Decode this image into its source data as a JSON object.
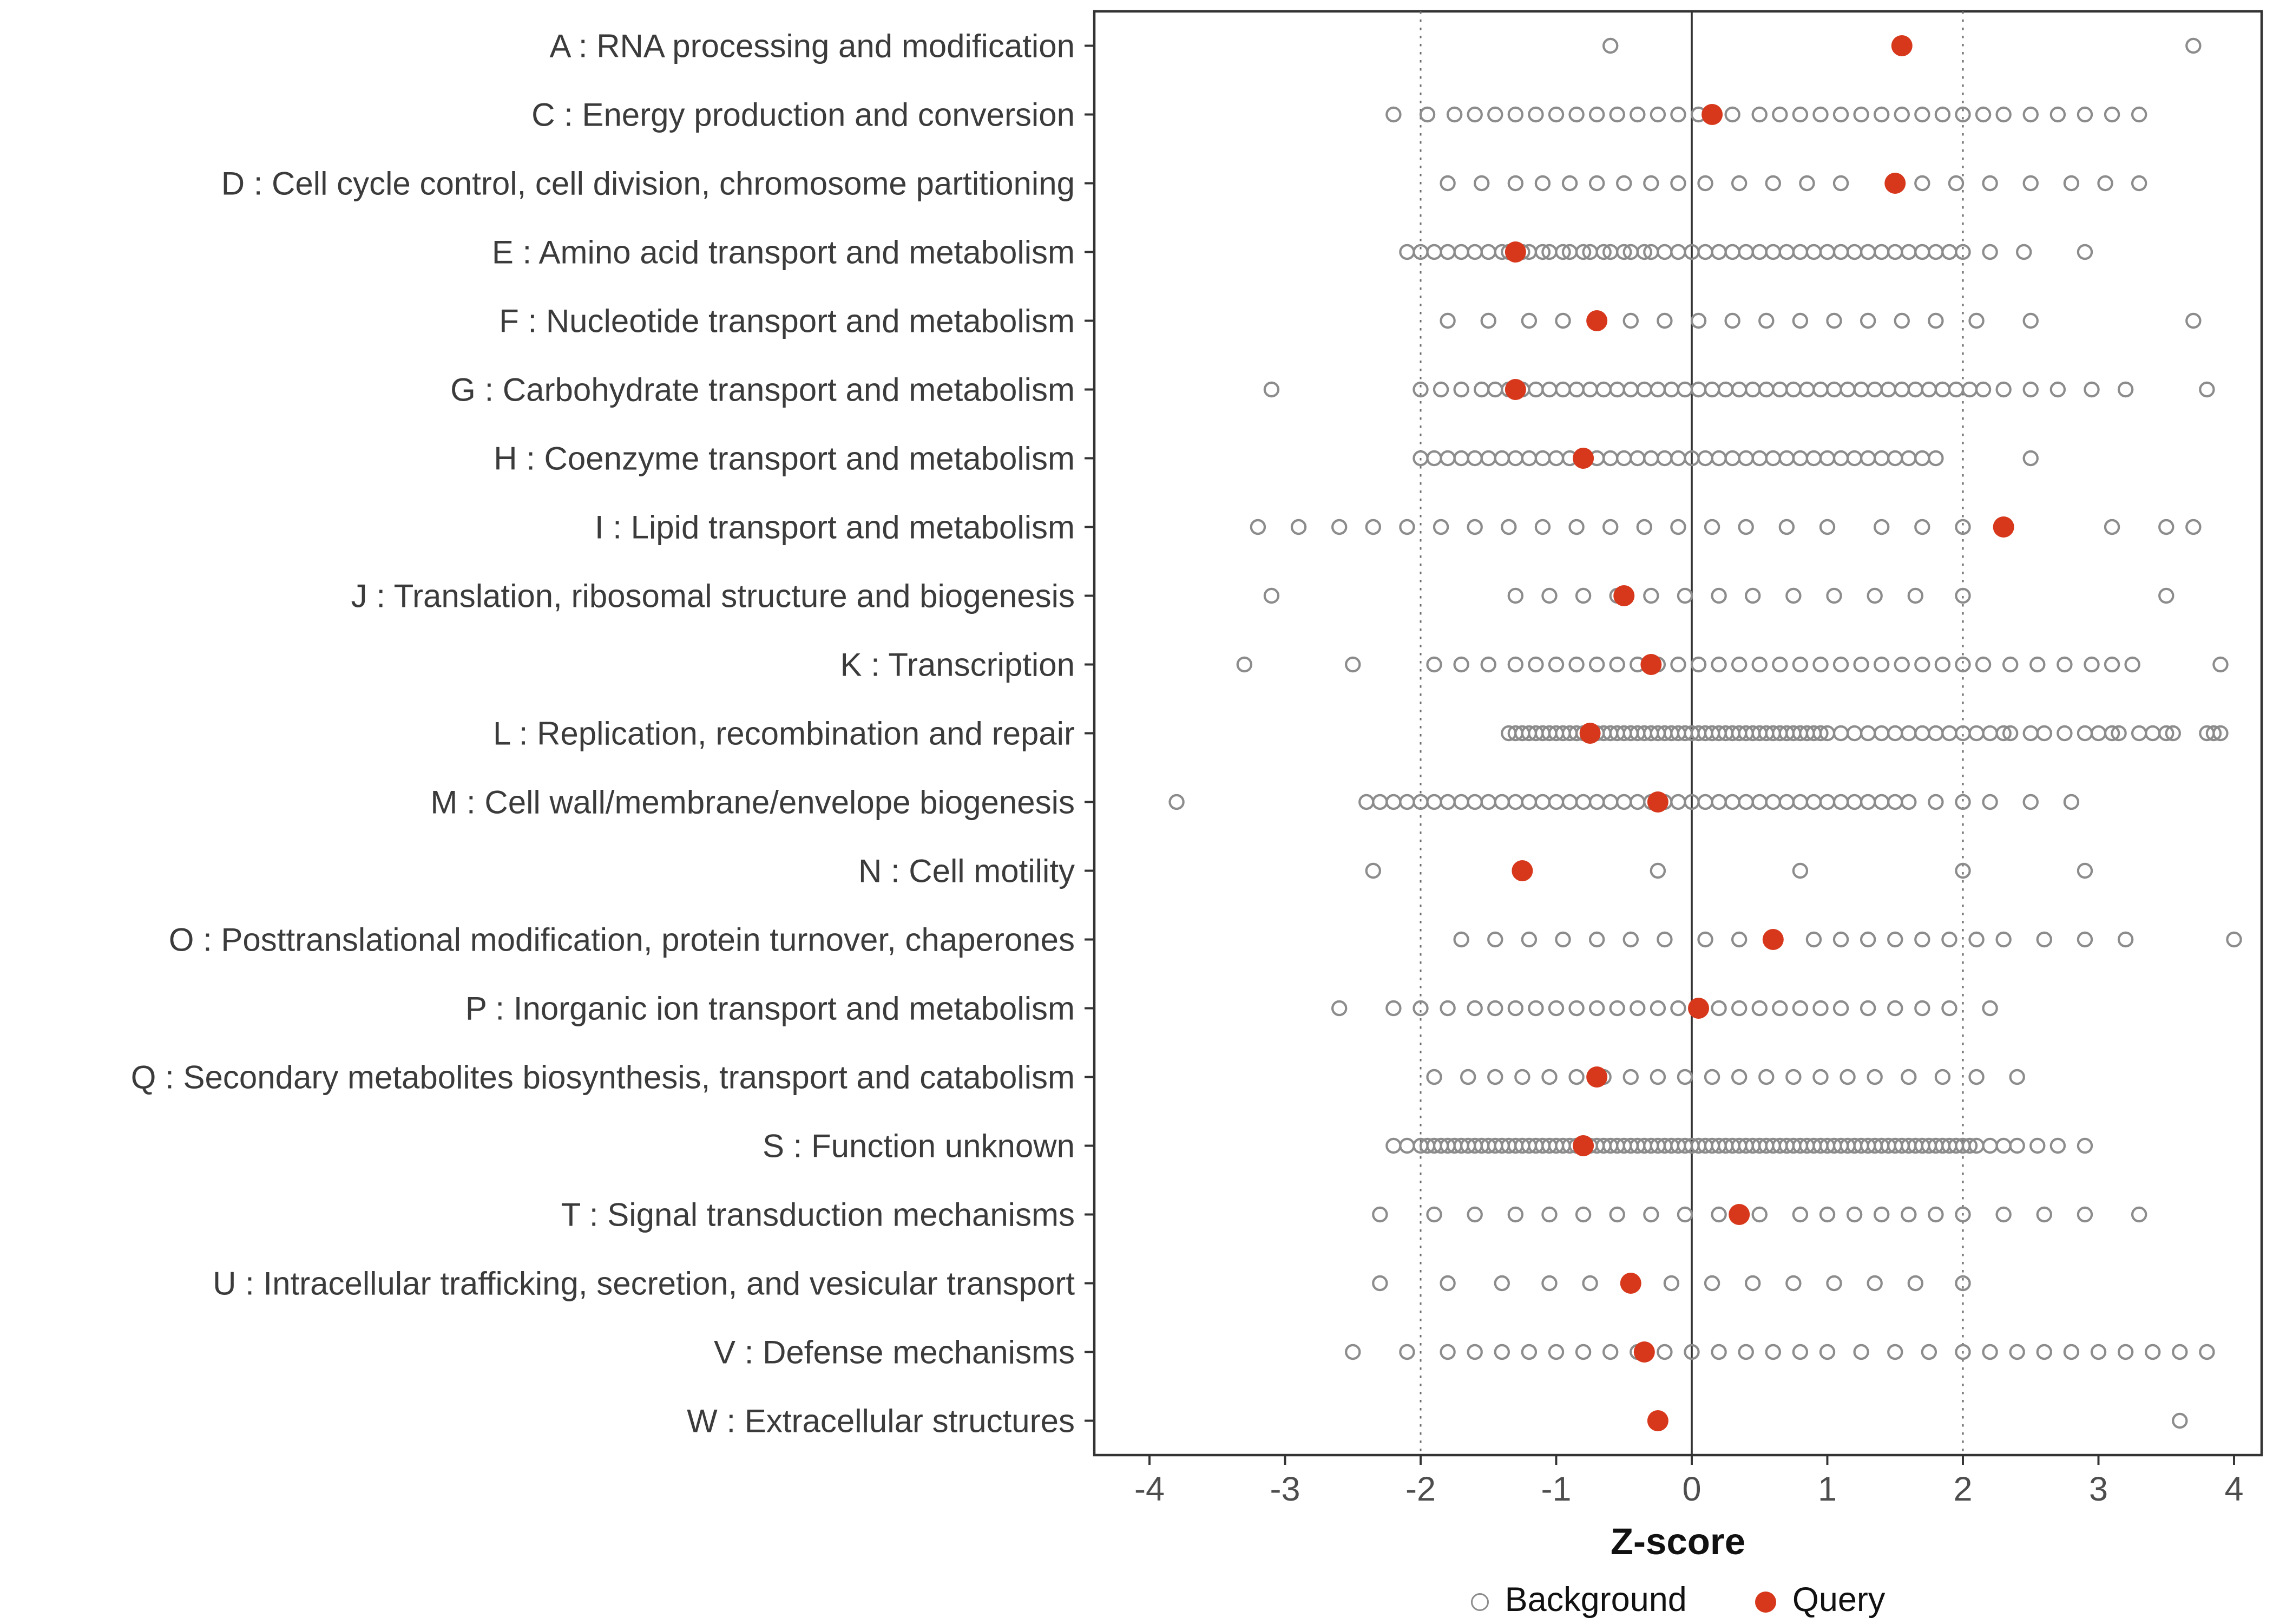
{
  "chart_data": {
    "type": "scatter",
    "title": "",
    "xlabel": "Z-score",
    "xlim": [
      -4.4,
      4.2
    ],
    "x_ticks": [
      -4,
      -3,
      -2,
      -1,
      0,
      1,
      2,
      3,
      4
    ],
    "reference_lines": {
      "solid": [
        0
      ],
      "dotted": [
        -2,
        2
      ]
    },
    "legend": {
      "background": "Background",
      "query": "Query"
    },
    "colors": {
      "query": "#D7381C",
      "background_stroke": "#8C8C8C",
      "panel_border": "#333333",
      "axis_text": "#4D4D4D",
      "label_text": "#3B3B3B"
    },
    "categories": [
      {
        "label": "A : RNA processing and modification",
        "query": 1.55,
        "background": [
          -0.6,
          3.7
        ]
      },
      {
        "label": "C : Energy production and conversion",
        "query": 0.15,
        "background": [
          -2.2,
          -1.95,
          -1.75,
          -1.6,
          -1.45,
          -1.3,
          -1.15,
          -1.0,
          -0.85,
          -0.7,
          -0.55,
          -0.4,
          -0.25,
          -0.1,
          0.05,
          0.3,
          0.5,
          0.65,
          0.8,
          0.95,
          1.1,
          1.25,
          1.4,
          1.55,
          1.7,
          1.85,
          2.0,
          2.15,
          2.3,
          2.5,
          2.7,
          2.9,
          3.1,
          3.3
        ]
      },
      {
        "label": "D : Cell cycle control, cell division, chromosome partitioning",
        "query": 1.5,
        "background": [
          -1.8,
          -1.55,
          -1.3,
          -1.1,
          -0.9,
          -0.7,
          -0.5,
          -0.3,
          -0.1,
          0.1,
          0.35,
          0.6,
          0.85,
          1.1,
          1.7,
          1.95,
          2.2,
          2.5,
          2.8,
          3.05,
          3.3
        ]
      },
      {
        "label": "E : Amino acid transport and metabolism",
        "query": -1.3,
        "background": [
          -2.1,
          -2.0,
          -1.9,
          -1.8,
          -1.7,
          -1.6,
          -1.5,
          -1.4,
          -1.35,
          -1.25,
          -1.2,
          -1.1,
          -1.05,
          -0.95,
          -0.9,
          -0.8,
          -0.75,
          -0.65,
          -0.6,
          -0.5,
          -0.45,
          -0.35,
          -0.3,
          -0.2,
          -0.1,
          0.0,
          0.1,
          0.2,
          0.3,
          0.4,
          0.5,
          0.6,
          0.7,
          0.8,
          0.9,
          1.0,
          1.1,
          1.2,
          1.3,
          1.4,
          1.5,
          1.6,
          1.7,
          1.8,
          1.9,
          2.0,
          2.2,
          2.45,
          2.9
        ]
      },
      {
        "label": "F : Nucleotide transport and metabolism",
        "query": -0.7,
        "background": [
          -1.8,
          -1.5,
          -1.2,
          -0.95,
          -0.7,
          -0.45,
          -0.2,
          0.05,
          0.3,
          0.55,
          0.8,
          1.05,
          1.3,
          1.55,
          1.8,
          2.1,
          2.5,
          3.7
        ]
      },
      {
        "label": "G : Carbohydrate transport and metabolism",
        "query": -1.3,
        "background": [
          -3.1,
          -2.0,
          -1.85,
          -1.7,
          -1.55,
          -1.45,
          -1.35,
          -1.25,
          -1.15,
          -1.05,
          -0.95,
          -0.85,
          -0.75,
          -0.65,
          -0.55,
          -0.45,
          -0.35,
          -0.25,
          -0.15,
          -0.05,
          0.05,
          0.15,
          0.25,
          0.35,
          0.45,
          0.55,
          0.65,
          0.75,
          0.85,
          0.95,
          1.05,
          1.15,
          1.25,
          1.35,
          1.45,
          1.55,
          1.65,
          1.75,
          1.85,
          1.95,
          2.05,
          2.15,
          2.3,
          2.5,
          2.7,
          2.95,
          3.2,
          3.8
        ]
      },
      {
        "label": "H : Coenzyme transport and metabolism",
        "query": -0.8,
        "background": [
          -2.0,
          -1.9,
          -1.8,
          -1.7,
          -1.6,
          -1.5,
          -1.4,
          -1.3,
          -1.2,
          -1.1,
          -1.0,
          -0.9,
          -0.8,
          -0.7,
          -0.6,
          -0.5,
          -0.4,
          -0.3,
          -0.2,
          -0.1,
          0.0,
          0.1,
          0.2,
          0.3,
          0.4,
          0.5,
          0.6,
          0.7,
          0.8,
          0.9,
          1.0,
          1.1,
          1.2,
          1.3,
          1.4,
          1.5,
          1.6,
          1.7,
          1.8,
          2.5
        ]
      },
      {
        "label": "I : Lipid transport and metabolism",
        "query": 2.3,
        "background": [
          -3.2,
          -2.9,
          -2.6,
          -2.35,
          -2.1,
          -1.85,
          -1.6,
          -1.35,
          -1.1,
          -0.85,
          -0.6,
          -0.35,
          -0.1,
          0.15,
          0.4,
          0.7,
          1.0,
          1.4,
          1.7,
          2.0,
          3.1,
          3.5,
          3.7
        ]
      },
      {
        "label": "J : Translation, ribosomal structure and biogenesis",
        "query": -0.5,
        "background": [
          -3.1,
          -1.3,
          -1.05,
          -0.8,
          -0.55,
          -0.3,
          -0.05,
          0.2,
          0.45,
          0.75,
          1.05,
          1.35,
          1.65,
          2.0,
          3.5
        ]
      },
      {
        "label": "K : Transcription",
        "query": -0.3,
        "background": [
          -3.3,
          -2.5,
          -1.9,
          -1.7,
          -1.5,
          -1.3,
          -1.15,
          -1.0,
          -0.85,
          -0.7,
          -0.55,
          -0.4,
          -0.25,
          -0.1,
          0.05,
          0.2,
          0.35,
          0.5,
          0.65,
          0.8,
          0.95,
          1.1,
          1.25,
          1.4,
          1.55,
          1.7,
          1.85,
          2.0,
          2.15,
          2.35,
          2.55,
          2.75,
          2.95,
          3.1,
          3.25,
          3.9
        ]
      },
      {
        "label": "L : Replication, recombination and repair",
        "query": -0.75,
        "background": [
          -1.35,
          -1.3,
          -1.25,
          -1.2,
          -1.15,
          -1.1,
          -1.05,
          -1.0,
          -0.95,
          -0.9,
          -0.85,
          -0.8,
          -0.75,
          -0.7,
          -0.65,
          -0.6,
          -0.55,
          -0.5,
          -0.45,
          -0.4,
          -0.35,
          -0.3,
          -0.25,
          -0.2,
          -0.15,
          -0.1,
          -0.05,
          0.0,
          0.05,
          0.1,
          0.15,
          0.2,
          0.25,
          0.3,
          0.35,
          0.4,
          0.45,
          0.5,
          0.55,
          0.6,
          0.65,
          0.7,
          0.75,
          0.8,
          0.85,
          0.9,
          0.95,
          1.0,
          1.1,
          1.2,
          1.3,
          1.4,
          1.5,
          1.6,
          1.7,
          1.8,
          1.9,
          2.0,
          2.1,
          2.2,
          2.3,
          2.35,
          2.5,
          2.6,
          2.75,
          2.9,
          3.0,
          3.1,
          3.15,
          3.3,
          3.4,
          3.5,
          3.55,
          3.8,
          3.85,
          3.9
        ]
      },
      {
        "label": "M : Cell wall/membrane/envelope biogenesis",
        "query": -0.25,
        "background": [
          -3.8,
          -2.4,
          -2.3,
          -2.2,
          -2.1,
          -2.0,
          -1.9,
          -1.8,
          -1.7,
          -1.6,
          -1.5,
          -1.4,
          -1.3,
          -1.2,
          -1.1,
          -1.0,
          -0.9,
          -0.8,
          -0.7,
          -0.6,
          -0.5,
          -0.4,
          -0.3,
          -0.2,
          -0.1,
          0.0,
          0.1,
          0.2,
          0.3,
          0.4,
          0.5,
          0.6,
          0.7,
          0.8,
          0.9,
          1.0,
          1.1,
          1.2,
          1.3,
          1.4,
          1.5,
          1.6,
          1.8,
          2.0,
          2.2,
          2.5,
          2.8
        ]
      },
      {
        "label": "N : Cell motility",
        "query": -1.25,
        "background": [
          -2.35,
          -0.25,
          0.8,
          2.0,
          2.9
        ]
      },
      {
        "label": "O : Posttranslational modification, protein turnover, chaperones",
        "query": 0.6,
        "background": [
          -1.7,
          -1.45,
          -1.2,
          -0.95,
          -0.7,
          -0.45,
          -0.2,
          0.1,
          0.35,
          0.9,
          1.1,
          1.3,
          1.5,
          1.7,
          1.9,
          2.1,
          2.3,
          2.6,
          2.9,
          3.2,
          4.0
        ]
      },
      {
        "label": "P : Inorganic ion transport and metabolism",
        "query": 0.05,
        "background": [
          -2.6,
          -2.2,
          -2.0,
          -1.8,
          -1.6,
          -1.45,
          -1.3,
          -1.15,
          -1.0,
          -0.85,
          -0.7,
          -0.55,
          -0.4,
          -0.25,
          -0.1,
          0.05,
          0.2,
          0.35,
          0.5,
          0.65,
          0.8,
          0.95,
          1.1,
          1.3,
          1.5,
          1.7,
          1.9,
          2.2
        ]
      },
      {
        "label": "Q : Secondary metabolites biosynthesis, transport and catabolism",
        "query": -0.7,
        "background": [
          -1.9,
          -1.65,
          -1.45,
          -1.25,
          -1.05,
          -0.85,
          -0.65,
          -0.45,
          -0.25,
          -0.05,
          0.15,
          0.35,
          0.55,
          0.75,
          0.95,
          1.15,
          1.35,
          1.6,
          1.85,
          2.1,
          2.4
        ]
      },
      {
        "label": "S : Function unknown",
        "query": -0.8,
        "background": [
          -2.2,
          -2.1,
          -2.0,
          -1.95,
          -1.9,
          -1.85,
          -1.8,
          -1.75,
          -1.7,
          -1.65,
          -1.6,
          -1.55,
          -1.5,
          -1.45,
          -1.4,
          -1.35,
          -1.3,
          -1.25,
          -1.2,
          -1.15,
          -1.1,
          -1.05,
          -1.0,
          -0.95,
          -0.9,
          -0.85,
          -0.8,
          -0.75,
          -0.7,
          -0.65,
          -0.6,
          -0.55,
          -0.5,
          -0.45,
          -0.4,
          -0.35,
          -0.3,
          -0.25,
          -0.2,
          -0.15,
          -0.1,
          -0.05,
          0.0,
          0.05,
          0.1,
          0.15,
          0.2,
          0.25,
          0.3,
          0.35,
          0.4,
          0.45,
          0.5,
          0.55,
          0.6,
          0.65,
          0.7,
          0.75,
          0.8,
          0.85,
          0.9,
          0.95,
          1.0,
          1.05,
          1.1,
          1.15,
          1.2,
          1.25,
          1.3,
          1.35,
          1.4,
          1.45,
          1.5,
          1.55,
          1.6,
          1.65,
          1.7,
          1.75,
          1.8,
          1.85,
          1.9,
          1.95,
          2.0,
          2.05,
          2.1,
          2.2,
          2.3,
          2.4,
          2.55,
          2.7,
          2.9
        ]
      },
      {
        "label": "T : Signal transduction mechanisms",
        "query": 0.35,
        "background": [
          -2.3,
          -1.9,
          -1.6,
          -1.3,
          -1.05,
          -0.8,
          -0.55,
          -0.3,
          -0.05,
          0.2,
          0.5,
          0.8,
          1.0,
          1.2,
          1.4,
          1.6,
          1.8,
          2.0,
          2.3,
          2.6,
          2.9,
          3.3
        ]
      },
      {
        "label": "U : Intracellular trafficking, secretion, and vesicular transport",
        "query": -0.45,
        "background": [
          -2.3,
          -1.8,
          -1.4,
          -1.05,
          -0.75,
          -0.45,
          -0.15,
          0.15,
          0.45,
          0.75,
          1.05,
          1.35,
          1.65,
          2.0
        ]
      },
      {
        "label": "V : Defense mechanisms",
        "query": -0.35,
        "background": [
          -2.5,
          -2.1,
          -1.8,
          -1.6,
          -1.4,
          -1.2,
          -1.0,
          -0.8,
          -0.6,
          -0.4,
          -0.2,
          0.0,
          0.2,
          0.4,
          0.6,
          0.8,
          1.0,
          1.25,
          1.5,
          1.75,
          2.0,
          2.2,
          2.4,
          2.6,
          2.8,
          3.0,
          3.2,
          3.4,
          3.6,
          3.8
        ]
      },
      {
        "label": "W : Extracellular structures",
        "query": -0.25,
        "background": [
          3.6
        ]
      }
    ]
  }
}
